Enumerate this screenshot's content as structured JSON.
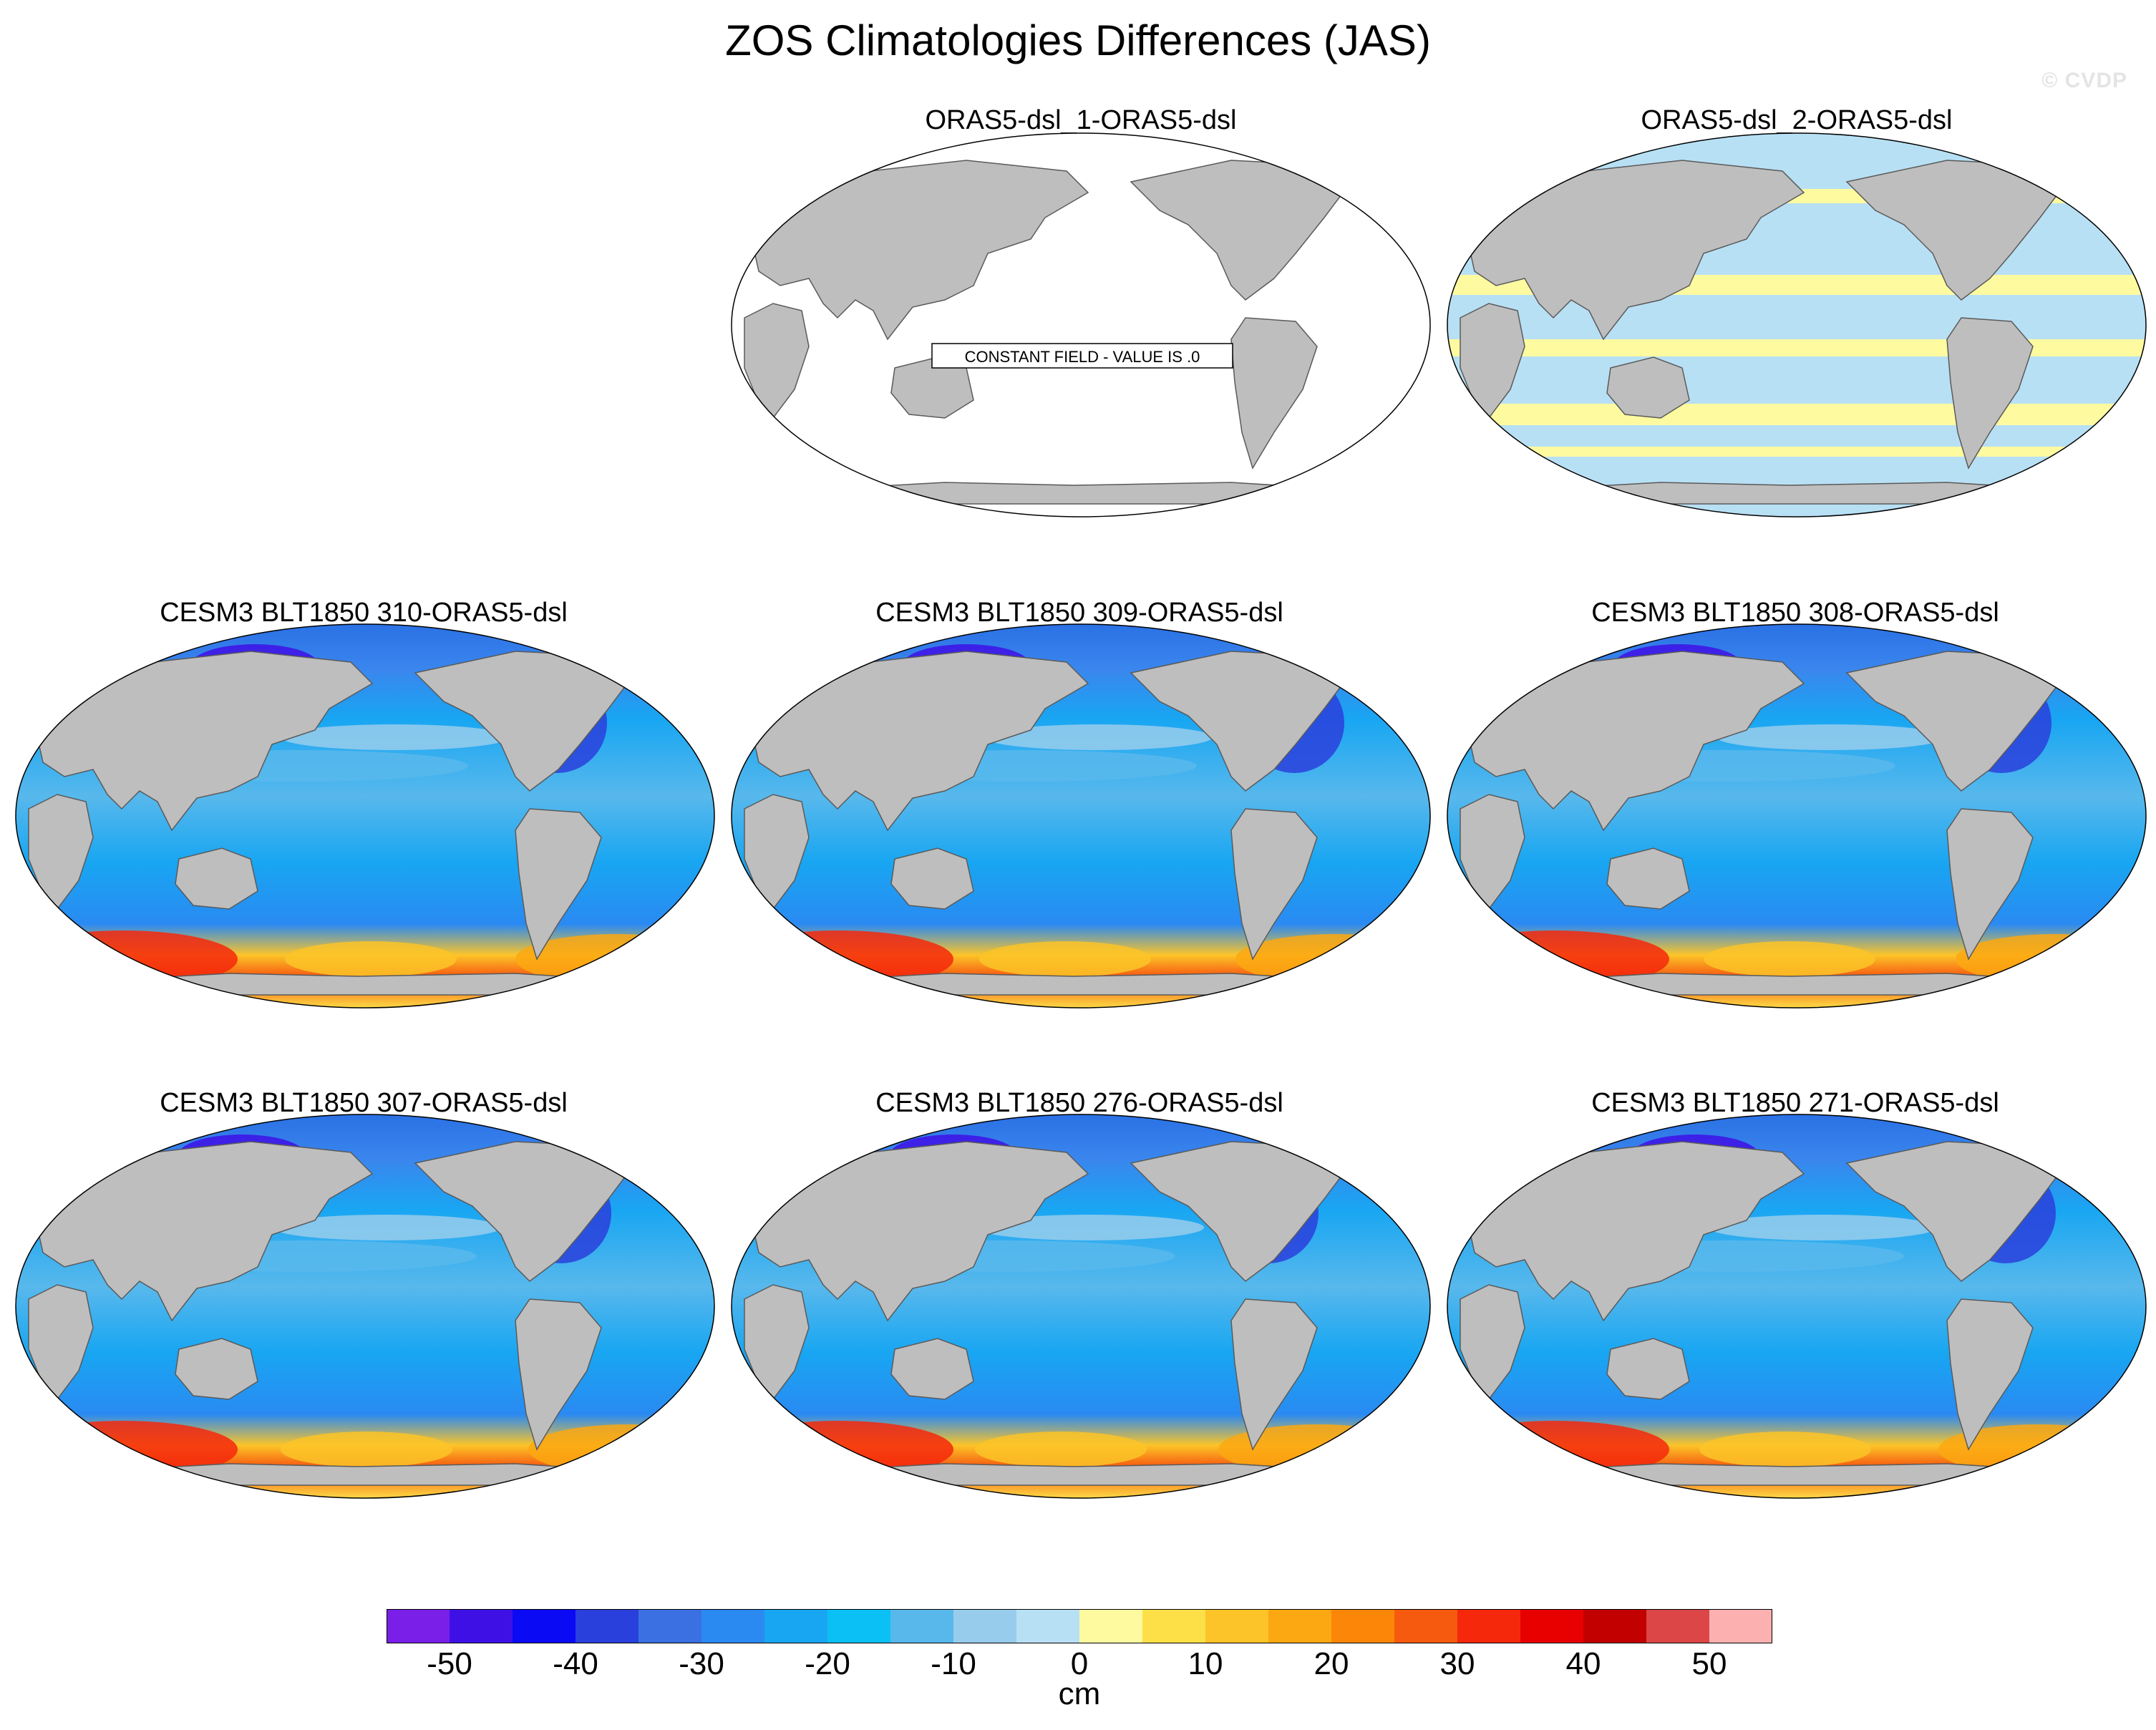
{
  "figure": {
    "title": "ZOS Climatologies Differences (JAS)",
    "watermark": "© CVDP"
  },
  "panels": [
    {
      "title": "ORAS5-dsl_1-ORAS5-dsl",
      "kind": "constant",
      "note": "CONSTANT FIELD - VALUE IS .0"
    },
    {
      "title": "ORAS5-dsl_2-ORAS5-dsl",
      "kind": "near-zero"
    },
    {
      "title": "CESM3 BLT1850 310-ORAS5-dsl",
      "kind": "model"
    },
    {
      "title": "CESM3 BLT1850 309-ORAS5-dsl",
      "kind": "model"
    },
    {
      "title": "CESM3 BLT1850 308-ORAS5-dsl",
      "kind": "model"
    },
    {
      "title": "CESM3 BLT1850 307-ORAS5-dsl",
      "kind": "model"
    },
    {
      "title": "CESM3 BLT1850 276-ORAS5-dsl",
      "kind": "model"
    },
    {
      "title": "CESM3 BLT1850 271-ORAS5-dsl",
      "kind": "model"
    }
  ],
  "colorbar": {
    "unit": "cm",
    "tick_labels": [
      "-50",
      "-40",
      "-30",
      "-20",
      "-10",
      "0",
      "10",
      "20",
      "30",
      "40",
      "50"
    ],
    "colors": [
      "#7a1fe8",
      "#3f10e6",
      "#0a0af5",
      "#2a40dc",
      "#3a70e2",
      "#2a8af2",
      "#18a6f2",
      "#0ac0f5",
      "#58b8ec",
      "#98ccec",
      "#b8e0f4",
      "#fefaa0",
      "#fde048",
      "#fcc428",
      "#fca812",
      "#fc8608",
      "#f55a0e",
      "#f5280c",
      "#e80000",
      "#c20000",
      "#dc4646",
      "#fcb0b0"
    ]
  },
  "colors": {
    "land": "#bebebe",
    "coast": "#5a5a5a"
  }
}
